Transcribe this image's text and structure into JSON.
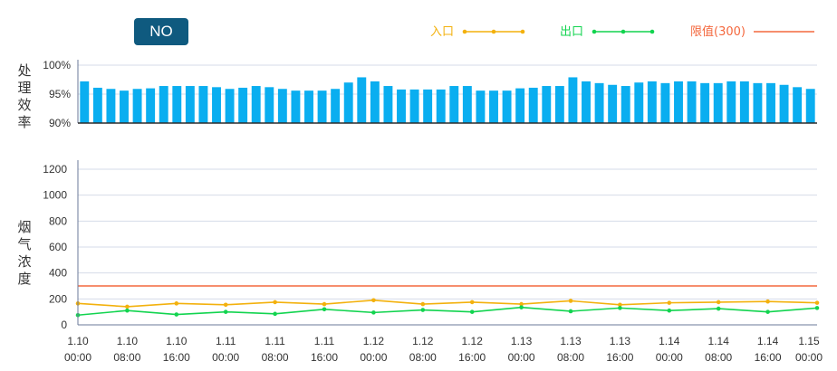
{
  "pollutant_badge": "NO",
  "chart_data": [
    {
      "type": "bar",
      "ylabel": "处理效率",
      "yticks": [
        "90%",
        "95%",
        "100%"
      ],
      "ylim": [
        90,
        100
      ],
      "color": "#0aaef0",
      "values": [
        97.2,
        96.1,
        95.9,
        95.6,
        95.9,
        96.0,
        96.4,
        96.4,
        96.4,
        96.4,
        96.2,
        95.9,
        96.1,
        96.4,
        96.2,
        95.9,
        95.6,
        95.6,
        95.6,
        95.9,
        97.0,
        97.9,
        97.2,
        96.4,
        95.8,
        95.8,
        95.8,
        95.8,
        96.4,
        96.4,
        95.6,
        95.6,
        95.6,
        96.0,
        96.1,
        96.4,
        96.4,
        97.9,
        97.2,
        96.9,
        96.6,
        96.4,
        97.0,
        97.2,
        96.9,
        97.2,
        97.2,
        96.9,
        96.9,
        97.2,
        97.2,
        96.9,
        96.9,
        96.6,
        96.2,
        95.9
      ]
    },
    {
      "type": "line",
      "ylabel": "烟气浓度",
      "yticks": [
        "0",
        "200",
        "400",
        "600",
        "800",
        "1000",
        "1200"
      ],
      "ylim": [
        0,
        1200
      ],
      "x_label_lines": [
        [
          "1.10",
          "00:00"
        ],
        [
          "1.10",
          "08:00"
        ],
        [
          "1.10",
          "16:00"
        ],
        [
          "1.11",
          "00:00"
        ],
        [
          "1.11",
          "08:00"
        ],
        [
          "1.11",
          "16:00"
        ],
        [
          "1.12",
          "00:00"
        ],
        [
          "1.12",
          "08:00"
        ],
        [
          "1.12",
          "16:00"
        ],
        [
          "1.13",
          "00:00"
        ],
        [
          "1.13",
          "08:00"
        ],
        [
          "1.13",
          "16:00"
        ],
        [
          "1.14",
          "00:00"
        ],
        [
          "1.14",
          "08:00"
        ],
        [
          "1.14",
          "16:00"
        ],
        [
          "1.15",
          "00:00"
        ]
      ],
      "series": [
        {
          "name": "入口",
          "color": "#f3b10d",
          "values": [
            165,
            140,
            165,
            155,
            175,
            160,
            190,
            160,
            175,
            160,
            185,
            155,
            170,
            175,
            180,
            170
          ]
        },
        {
          "name": "出口",
          "color": "#12d44f",
          "values": [
            75,
            110,
            80,
            100,
            85,
            120,
            95,
            115,
            100,
            135,
            105,
            130,
            110,
            125,
            100,
            130
          ]
        }
      ],
      "limit": {
        "name": "限值(300)",
        "value": 300,
        "color": "#f4683e"
      }
    }
  ]
}
